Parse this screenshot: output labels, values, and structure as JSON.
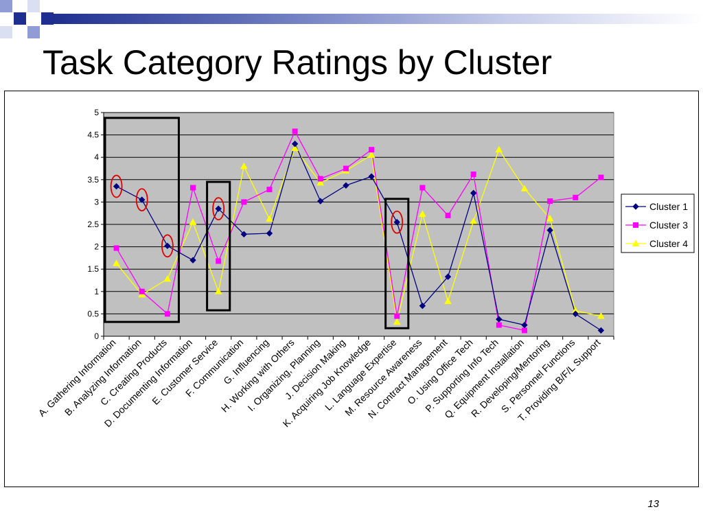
{
  "slide": {
    "title": "Task Category Ratings by Cluster",
    "page_number": "13",
    "accent_colors": [
      "#1f2f8f",
      "#8f9cd6",
      "#dadff2"
    ]
  },
  "chart_data": {
    "type": "line",
    "title": "",
    "xlabel": "",
    "ylabel": "",
    "ylim": [
      0,
      5
    ],
    "yticks": [
      "0",
      "0.5",
      "1",
      "1.5",
      "2",
      "2.5",
      "3",
      "3.5",
      "4",
      "4.5",
      "5"
    ],
    "grid": true,
    "plot_background": "#c0c0c0",
    "legend_position": "right",
    "categories": [
      "A. Gathering Information",
      "B. Analyzing Information",
      "C. Creating Products",
      "D. Documenting Information",
      "E. Customer Service",
      "F. Communication",
      "G. Influencing",
      "H. Working with Others",
      "I. Organizing, Planning",
      "J. Decision Making",
      "K. Acquiring Job Knowledge",
      "L. Language Expertise",
      "M. Resource Awareness",
      "N. Contract Management",
      "O. Using Office Tech",
      "P. Supporting Info Tech",
      "Q. Equipment Installation",
      "R. Developing/Mentoring",
      "S. Personnel Functions",
      "T. Providing B/F/L Support"
    ],
    "series": [
      {
        "name": "Cluster 1",
        "color": "#000080",
        "marker": "diamond",
        "values": [
          3.35,
          3.05,
          2.02,
          1.7,
          2.85,
          2.28,
          2.3,
          4.3,
          3.02,
          3.37,
          3.57,
          2.55,
          0.68,
          1.33,
          3.2,
          0.38,
          0.25,
          2.37,
          0.5,
          0.13
        ]
      },
      {
        "name": "Cluster 3",
        "color": "#ff00ff",
        "marker": "square",
        "values": [
          1.97,
          1.0,
          0.5,
          3.32,
          1.68,
          3.0,
          3.28,
          4.58,
          3.52,
          3.75,
          4.17,
          0.45,
          3.32,
          2.7,
          3.62,
          0.25,
          0.13,
          3.02,
          3.1,
          3.55
        ]
      },
      {
        "name": "Cluster 4",
        "color": "#ffff00",
        "marker": "triangle",
        "values": [
          1.63,
          0.93,
          1.28,
          2.55,
          1.0,
          3.8,
          2.62,
          4.2,
          3.43,
          3.7,
          4.05,
          0.32,
          2.73,
          0.78,
          2.57,
          4.17,
          3.3,
          2.63,
          0.57,
          0.45
        ]
      }
    ],
    "annotations": {
      "highlight_boxes": [
        {
          "categories": [
            0,
            2
          ],
          "ylim": [
            0.32,
            4.88
          ]
        },
        {
          "categories": [
            4,
            4
          ],
          "ylim": [
            0.58,
            3.45
          ]
        },
        {
          "categories": [
            11,
            11
          ],
          "ylim": [
            0.18,
            3.07
          ]
        }
      ],
      "circled_points": [
        {
          "series": "Cluster 1",
          "category": 0
        },
        {
          "series": "Cluster 1",
          "category": 1
        },
        {
          "series": "Cluster 1",
          "category": 2
        },
        {
          "series": "Cluster 1",
          "category": 4
        },
        {
          "series": "Cluster 1",
          "category": 11
        }
      ]
    }
  }
}
